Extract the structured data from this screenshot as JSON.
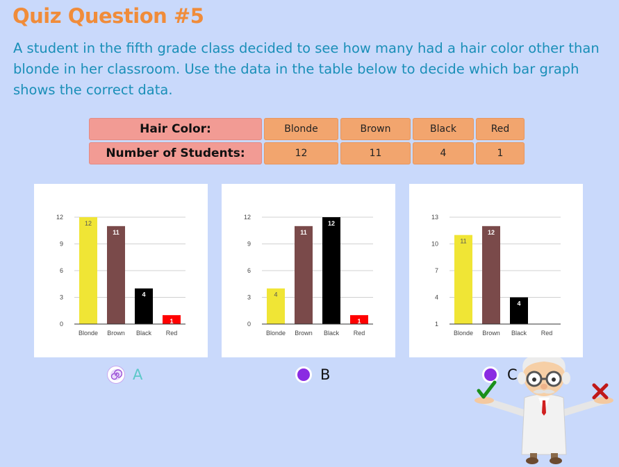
{
  "quiz": {
    "title": "Quiz Question #5",
    "question": "A student in the fifth grade class decided to see how many had a hair color other than blonde in her classroom. Use the data in the table below to decide which bar graph shows the correct data."
  },
  "table": {
    "header_label": "Hair Color:",
    "count_label": "Number of Students:",
    "colors": [
      "Blonde",
      "Brown",
      "Black",
      "Red"
    ],
    "counts": [
      "12",
      "11",
      "4",
      "1"
    ]
  },
  "options": [
    {
      "label": "A",
      "selected": true
    },
    {
      "label": "B",
      "selected": false
    },
    {
      "label": "C",
      "selected": false
    }
  ],
  "colors": {
    "background": "#c9d9fb",
    "title": "#f08c3a",
    "question": "#1a8fb8",
    "radio": "#8a2be2",
    "bar_blonde": "#f0e535",
    "bar_brown": "#7a4a4a",
    "bar_black": "#000000",
    "bar_red": "#ff0000"
  },
  "chart_data": [
    {
      "type": "bar",
      "categories": [
        "Blonde",
        "Brown",
        "Black",
        "Red"
      ],
      "values": [
        12,
        11,
        4,
        1
      ],
      "yticks": [
        0,
        3,
        6,
        9,
        12
      ],
      "ylim": [
        0,
        12
      ],
      "bar_colors": [
        "#f0e535",
        "#7a4a4a",
        "#000000",
        "#ff0000"
      ],
      "grid": true
    },
    {
      "type": "bar",
      "categories": [
        "Blonde",
        "Brown",
        "Black",
        "Red"
      ],
      "values": [
        4,
        11,
        12,
        1
      ],
      "yticks": [
        0,
        3,
        6,
        9,
        12
      ],
      "ylim": [
        0,
        12
      ],
      "bar_colors": [
        "#f0e535",
        "#7a4a4a",
        "#000000",
        "#ff0000"
      ],
      "grid": true
    },
    {
      "type": "bar",
      "categories": [
        "Blonde",
        "Brown",
        "Black",
        "Red"
      ],
      "values": [
        11,
        12,
        4,
        1
      ],
      "yticks": [
        1,
        4,
        7,
        10,
        13
      ],
      "ylim": [
        1,
        13
      ],
      "bar_colors": [
        "#f0e535",
        "#7a4a4a",
        "#000000",
        "#ff0000"
      ],
      "grid": true
    }
  ]
}
